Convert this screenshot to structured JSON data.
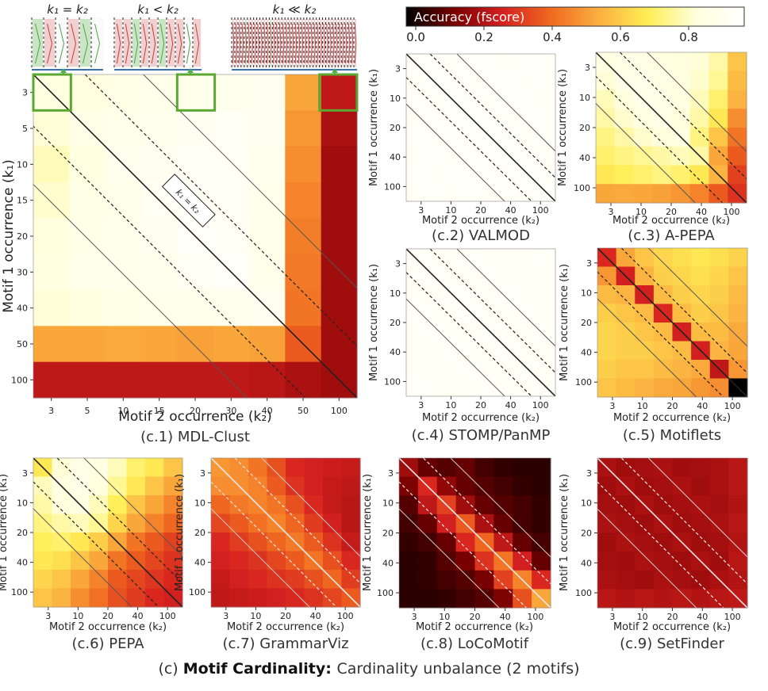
{
  "colorbar": {
    "title": "Accuracy (fscore)",
    "ticks": [
      "0.0",
      "0.2",
      "0.4",
      "0.6",
      "0.8"
    ],
    "colors": [
      "#000000",
      "#7a0000",
      "#d62020",
      "#f06a20",
      "#fbb040",
      "#ffee55",
      "#ffffdd",
      "#ffffff"
    ]
  },
  "main_caption": {
    "prefix": "(c)",
    "bold": "Motif Cardinality:",
    "rest": "Cardinality unbalance (2 motifs)"
  },
  "top_labels": {
    "equal": "k₁ = k₂",
    "less": "k₁ < k₂",
    "much_less": "k₁ ≪ k₂"
  },
  "chart_data": [
    {
      "id": "mdl",
      "type": "heatmap",
      "caption": "(c.1) MDL-Clust",
      "xlabel": "Motif 2 occurrence (k₂)",
      "ylabel": "Motif 1 occurrence (k₁)",
      "xticks": [
        "3",
        "5",
        "10",
        "15",
        "20",
        "30",
        "40",
        "50",
        "100"
      ],
      "yticks": [
        "3",
        "5",
        "10",
        "15",
        "20",
        "30",
        "40",
        "50",
        "100"
      ],
      "diag_label": "k₁ = k₂",
      "values": [
        [
          0.88,
          0.87,
          0.89,
          0.91,
          0.92,
          0.93,
          0.94,
          0.55,
          0.25
        ],
        [
          0.85,
          0.9,
          0.91,
          0.93,
          0.94,
          0.95,
          0.94,
          0.52,
          0.22
        ],
        [
          0.82,
          0.88,
          0.93,
          0.94,
          0.95,
          0.95,
          0.93,
          0.5,
          0.2
        ],
        [
          0.84,
          0.89,
          0.91,
          0.95,
          0.96,
          0.95,
          0.92,
          0.48,
          0.2
        ],
        [
          0.86,
          0.9,
          0.92,
          0.94,
          0.97,
          0.96,
          0.91,
          0.47,
          0.2
        ],
        [
          0.88,
          0.91,
          0.92,
          0.93,
          0.95,
          0.97,
          0.92,
          0.46,
          0.2
        ],
        [
          0.85,
          0.88,
          0.9,
          0.91,
          0.92,
          0.93,
          0.94,
          0.45,
          0.2
        ],
        [
          0.55,
          0.55,
          0.56,
          0.55,
          0.54,
          0.55,
          0.54,
          0.4,
          0.2
        ],
        [
          0.25,
          0.25,
          0.25,
          0.25,
          0.25,
          0.25,
          0.24,
          0.22,
          0.2
        ]
      ]
    },
    {
      "id": "valmod",
      "type": "heatmap",
      "caption": "(c.2) VALMOD",
      "xlabel": "Motif 2 occurrence (k₂)",
      "ylabel": "Motif 1 occurrence (k₁)",
      "xticks": [
        "3",
        "10",
        "20",
        "40",
        "100"
      ],
      "yticks": [
        "3",
        "10",
        "20",
        "40",
        "100"
      ],
      "values": [
        [
          0.97,
          0.97,
          0.96,
          0.97,
          0.97,
          0.96,
          0.97,
          0.97
        ],
        [
          0.96,
          0.98,
          0.97,
          0.96,
          0.97,
          0.97,
          0.96,
          0.97
        ],
        [
          0.97,
          0.96,
          0.98,
          0.97,
          0.96,
          0.97,
          0.97,
          0.96
        ],
        [
          0.96,
          0.97,
          0.97,
          0.98,
          0.97,
          0.96,
          0.97,
          0.97
        ],
        [
          0.97,
          0.96,
          0.97,
          0.97,
          0.98,
          0.97,
          0.96,
          0.97
        ],
        [
          0.96,
          0.97,
          0.96,
          0.97,
          0.97,
          0.98,
          0.97,
          0.96
        ],
        [
          0.97,
          0.96,
          0.97,
          0.96,
          0.97,
          0.97,
          0.98,
          0.97
        ],
        [
          0.96,
          0.97,
          0.96,
          0.97,
          0.96,
          0.97,
          0.97,
          0.98
        ]
      ]
    },
    {
      "id": "apepa",
      "type": "heatmap",
      "caption": "(c.3) A-PEPA",
      "xlabel": "Motif 2 occurrence (k₂)",
      "ylabel": "Motif 1 occurrence (k₁)",
      "xticks": [
        "3",
        "10",
        "20",
        "40",
        "100"
      ],
      "yticks": [
        "3",
        "10",
        "20",
        "40",
        "100"
      ],
      "values": [
        [
          0.88,
          0.9,
          0.89,
          0.87,
          0.86,
          0.85,
          0.8,
          0.62
        ],
        [
          0.85,
          0.9,
          0.91,
          0.89,
          0.87,
          0.84,
          0.78,
          0.6
        ],
        [
          0.82,
          0.86,
          0.91,
          0.9,
          0.88,
          0.82,
          0.74,
          0.58
        ],
        [
          0.8,
          0.84,
          0.88,
          0.9,
          0.86,
          0.8,
          0.7,
          0.5
        ],
        [
          0.76,
          0.8,
          0.84,
          0.86,
          0.88,
          0.76,
          0.62,
          0.45
        ],
        [
          0.74,
          0.76,
          0.78,
          0.8,
          0.82,
          0.8,
          0.55,
          0.4
        ],
        [
          0.7,
          0.72,
          0.74,
          0.76,
          0.74,
          0.7,
          0.58,
          0.35
        ],
        [
          0.55,
          0.56,
          0.55,
          0.54,
          0.52,
          0.48,
          0.4,
          0.32
        ]
      ]
    },
    {
      "id": "stomp",
      "type": "heatmap",
      "caption": "(c.4) STOMP/PanMP",
      "xlabel": "Motif 2 occurrence (k₂)",
      "ylabel": "Motif 1 occurrence (k₁)",
      "xticks": [
        "3",
        "10",
        "20",
        "40",
        "100"
      ],
      "yticks": [
        "3",
        "10",
        "20",
        "40",
        "100"
      ],
      "values": [
        [
          0.97,
          0.96,
          0.96,
          0.97,
          0.96,
          0.95,
          0.96,
          0.97
        ],
        [
          0.96,
          0.97,
          0.96,
          0.96,
          0.97,
          0.96,
          0.95,
          0.96
        ],
        [
          0.96,
          0.96,
          0.97,
          0.96,
          0.96,
          0.97,
          0.96,
          0.95
        ],
        [
          0.97,
          0.96,
          0.96,
          0.97,
          0.96,
          0.96,
          0.97,
          0.96
        ],
        [
          0.96,
          0.97,
          0.96,
          0.96,
          0.97,
          0.96,
          0.96,
          0.97
        ],
        [
          0.95,
          0.96,
          0.97,
          0.96,
          0.96,
          0.97,
          0.96,
          0.96
        ],
        [
          0.96,
          0.95,
          0.96,
          0.97,
          0.96,
          0.96,
          0.97,
          0.96
        ],
        [
          0.97,
          0.96,
          0.95,
          0.96,
          0.97,
          0.96,
          0.96,
          0.97
        ]
      ]
    },
    {
      "id": "motiflets",
      "type": "heatmap",
      "caption": "(c.5) Motiflets",
      "xlabel": "Motif 2 occurrence (k₂)",
      "ylabel": "Motif 1 occurrence (k₁)",
      "xticks": [
        "3",
        "10",
        "20",
        "40",
        "100"
      ],
      "yticks": [
        "3",
        "10",
        "20",
        "40",
        "100"
      ],
      "values": [
        [
          0.3,
          0.55,
          0.62,
          0.66,
          0.68,
          0.7,
          0.68,
          0.65
        ],
        [
          0.52,
          0.28,
          0.58,
          0.64,
          0.66,
          0.68,
          0.66,
          0.62
        ],
        [
          0.6,
          0.58,
          0.28,
          0.6,
          0.64,
          0.66,
          0.64,
          0.6
        ],
        [
          0.64,
          0.62,
          0.6,
          0.3,
          0.6,
          0.64,
          0.62,
          0.58
        ],
        [
          0.66,
          0.64,
          0.62,
          0.6,
          0.28,
          0.6,
          0.6,
          0.56
        ],
        [
          0.66,
          0.64,
          0.64,
          0.62,
          0.6,
          0.28,
          0.58,
          0.55
        ],
        [
          0.64,
          0.62,
          0.62,
          0.6,
          0.58,
          0.56,
          0.25,
          0.52
        ],
        [
          0.62,
          0.6,
          0.58,
          0.56,
          0.55,
          0.52,
          0.5,
          0.0
        ]
      ]
    },
    {
      "id": "pepa",
      "type": "heatmap",
      "caption": "(c.6) PEPA",
      "xlabel": "Motif 2 occurrence (k₂)",
      "ylabel": "Motif 1 occurrence (k₁)",
      "xticks": [
        "3",
        "10",
        "20",
        "40",
        "100"
      ],
      "yticks": [
        "3",
        "10",
        "20",
        "40",
        "100"
      ],
      "values": [
        [
          0.7,
          0.85,
          0.9,
          0.88,
          0.82,
          0.74,
          0.7,
          0.62
        ],
        [
          0.82,
          0.88,
          0.9,
          0.86,
          0.78,
          0.7,
          0.62,
          0.55
        ],
        [
          0.8,
          0.86,
          0.88,
          0.82,
          0.72,
          0.62,
          0.55,
          0.48
        ],
        [
          0.76,
          0.8,
          0.82,
          0.78,
          0.66,
          0.55,
          0.48,
          0.42
        ],
        [
          0.72,
          0.74,
          0.7,
          0.64,
          0.55,
          0.45,
          0.4,
          0.35
        ],
        [
          0.7,
          0.68,
          0.62,
          0.55,
          0.45,
          0.4,
          0.36,
          0.32
        ],
        [
          0.66,
          0.62,
          0.55,
          0.48,
          0.4,
          0.36,
          0.33,
          0.3
        ],
        [
          0.62,
          0.58,
          0.5,
          0.44,
          0.38,
          0.34,
          0.3,
          0.28
        ]
      ]
    },
    {
      "id": "grammarviz",
      "type": "heatmap",
      "caption": "(c.7) GrammarViz",
      "xlabel": "Motif 2 occurrence (k₂)",
      "ylabel": "Motif 1 occurrence (k₁)",
      "xticks": [
        "3",
        "10",
        "20",
        "40",
        "100"
      ],
      "yticks": [
        "3",
        "10",
        "20",
        "40",
        "100"
      ],
      "values": [
        [
          0.52,
          0.5,
          0.45,
          0.38,
          0.3,
          0.28,
          0.27,
          0.26
        ],
        [
          0.5,
          0.5,
          0.48,
          0.4,
          0.32,
          0.28,
          0.26,
          0.25
        ],
        [
          0.42,
          0.46,
          0.48,
          0.45,
          0.38,
          0.3,
          0.26,
          0.24
        ],
        [
          0.36,
          0.4,
          0.44,
          0.48,
          0.42,
          0.34,
          0.28,
          0.24
        ],
        [
          0.3,
          0.34,
          0.38,
          0.42,
          0.46,
          0.4,
          0.32,
          0.26
        ],
        [
          0.28,
          0.3,
          0.32,
          0.36,
          0.4,
          0.45,
          0.38,
          0.3
        ],
        [
          0.26,
          0.28,
          0.3,
          0.32,
          0.34,
          0.38,
          0.42,
          0.34
        ],
        [
          0.25,
          0.26,
          0.27,
          0.28,
          0.3,
          0.32,
          0.36,
          0.4
        ]
      ]
    },
    {
      "id": "locomotif",
      "type": "heatmap",
      "caption": "(c.8) LoCoMotif",
      "xlabel": "Motif 2 occurrence (k₂)",
      "ylabel": "Motif 1 occurrence (k₁)",
      "xticks": [
        "3",
        "10",
        "20",
        "40",
        "100"
      ],
      "yticks": [
        "3",
        "10",
        "20",
        "40",
        "100"
      ],
      "values": [
        [
          0.2,
          0.12,
          0.1,
          0.12,
          0.08,
          0.06,
          0.05,
          0.05
        ],
        [
          0.15,
          0.3,
          0.18,
          0.12,
          0.1,
          0.08,
          0.06,
          0.05
        ],
        [
          0.1,
          0.25,
          0.35,
          0.2,
          0.12,
          0.1,
          0.08,
          0.06
        ],
        [
          0.08,
          0.12,
          0.28,
          0.4,
          0.22,
          0.12,
          0.08,
          0.06
        ],
        [
          0.06,
          0.08,
          0.12,
          0.3,
          0.42,
          0.25,
          0.12,
          0.08
        ],
        [
          0.05,
          0.06,
          0.1,
          0.14,
          0.32,
          0.45,
          0.28,
          0.12
        ],
        [
          0.05,
          0.06,
          0.08,
          0.1,
          0.14,
          0.35,
          0.48,
          0.3
        ],
        [
          0.05,
          0.05,
          0.06,
          0.08,
          0.1,
          0.15,
          0.38,
          0.55
        ]
      ]
    },
    {
      "id": "setfinder",
      "type": "heatmap",
      "caption": "(c.9) SetFinder",
      "xlabel": "Motif 2 occurrence (k₂)",
      "ylabel": "Motif 1 occurrence (k₁)",
      "xticks": [
        "3",
        "10",
        "20",
        "40",
        "100"
      ],
      "yticks": [
        "3",
        "10",
        "20",
        "40",
        "100"
      ],
      "values": [
        [
          0.22,
          0.2,
          0.21,
          0.22,
          0.2,
          0.21,
          0.22,
          0.24
        ],
        [
          0.2,
          0.22,
          0.2,
          0.21,
          0.22,
          0.2,
          0.22,
          0.24
        ],
        [
          0.21,
          0.2,
          0.22,
          0.2,
          0.21,
          0.22,
          0.21,
          0.23
        ],
        [
          0.22,
          0.21,
          0.2,
          0.22,
          0.2,
          0.21,
          0.22,
          0.24
        ],
        [
          0.2,
          0.22,
          0.21,
          0.2,
          0.22,
          0.2,
          0.21,
          0.23
        ],
        [
          0.21,
          0.2,
          0.22,
          0.21,
          0.2,
          0.22,
          0.2,
          0.24
        ],
        [
          0.22,
          0.21,
          0.2,
          0.22,
          0.21,
          0.2,
          0.22,
          0.23
        ],
        [
          0.24,
          0.23,
          0.24,
          0.23,
          0.24,
          0.23,
          0.24,
          0.25
        ]
      ]
    }
  ]
}
